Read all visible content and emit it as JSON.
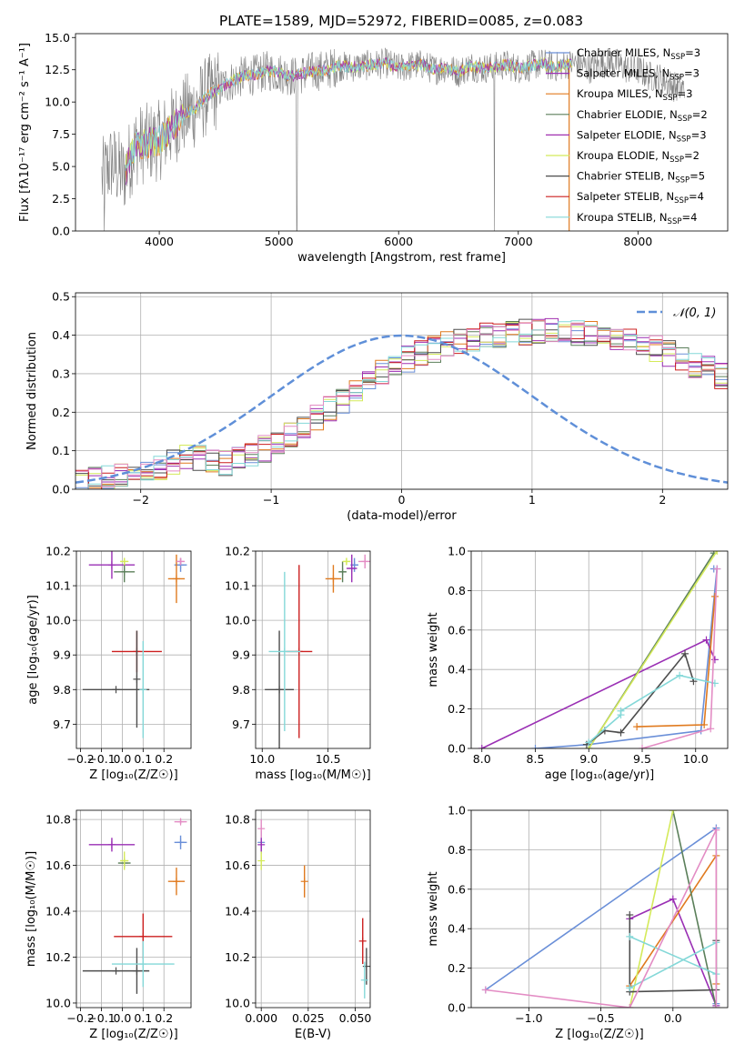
{
  "figure_title": "PLATE=1589, MJD=52972, FIBERID=0085, z=0.083",
  "colors": {
    "chabrier_miles": "#6a8fd8",
    "salpeter_miles": "#9a2fb4",
    "kroupa_miles": "#e07a1f",
    "chabrier_elodie": "#5b7f5a",
    "salpeter_elodie": "#a030b0",
    "kroupa_elodie": "#d4ea5a",
    "chabrier_stelib": "#4d4d4d",
    "salpeter_stelib": "#cc1f1f",
    "kroupa_stelib": "#84d8d8",
    "pink": "#e38cc4",
    "gray_data": "#808080",
    "normal_curve": "#5f8fd8"
  },
  "chart_data": [
    {
      "type": "line",
      "title": "PLATE=1589, MJD=52972, FIBERID=0085, z=0.083",
      "xlabel": "wavelength [Angstrom, rest frame]",
      "ylabel": "Flux [fλ10⁻¹⁷ erg cm⁻² s⁻¹ A⁻¹]",
      "xlim": [
        3300,
        8750
      ],
      "ylim": [
        0,
        15.3
      ],
      "xticks": [
        4000,
        5000,
        6000,
        7000,
        8000
      ],
      "yticks": [
        0.0,
        2.5,
        5.0,
        7.5,
        10.0,
        12.5,
        15.0
      ],
      "legend_position": "right",
      "legend": [
        {
          "label": "Chabrier MILES, N",
          "sub": "SSP",
          "suffix": "=3",
          "color_key": "chabrier_miles"
        },
        {
          "label": "Salpeter MILES, N",
          "sub": "SSP",
          "suffix": "=3",
          "color_key": "salpeter_miles"
        },
        {
          "label": "Kroupa MILES, N",
          "sub": "SSP",
          "suffix": "=3",
          "color_key": "kroupa_miles"
        },
        {
          "label": "Chabrier ELODIE, N",
          "sub": "SSP",
          "suffix": "=2",
          "color_key": "chabrier_elodie"
        },
        {
          "label": "Salpeter ELODIE, N",
          "sub": "SSP",
          "suffix": "=3",
          "color_key": "salpeter_elodie"
        },
        {
          "label": "Kroupa ELODIE, N",
          "sub": "SSP",
          "suffix": "=2",
          "color_key": "kroupa_elodie"
        },
        {
          "label": "Chabrier STELIB, N",
          "sub": "SSP",
          "suffix": "=5",
          "color_key": "chabrier_stelib"
        },
        {
          "label": "Salpeter STELIB, N",
          "sub": "SSP",
          "suffix": "=4",
          "color_key": "salpeter_stelib"
        },
        {
          "label": "Kroupa STELIB, N",
          "sub": "SSP",
          "suffix": "=4",
          "color_key": "kroupa_stelib"
        }
      ],
      "continuum": [
        [
          3520,
          4.0
        ],
        [
          3600,
          5.3
        ],
        [
          3700,
          4.3
        ],
        [
          3800,
          6.6
        ],
        [
          3900,
          6.8
        ],
        [
          4000,
          7.0
        ],
        [
          4100,
          8.0
        ],
        [
          4200,
          9.0
        ],
        [
          4300,
          9.5
        ],
        [
          4400,
          10.5
        ],
        [
          4500,
          11.0
        ],
        [
          4600,
          11.6
        ],
        [
          4700,
          12.0
        ],
        [
          4800,
          12.1
        ],
        [
          4900,
          12.4
        ],
        [
          5000,
          12.3
        ],
        [
          5100,
          12.0
        ],
        [
          5200,
          12.2
        ],
        [
          5300,
          12.4
        ],
        [
          5400,
          12.5
        ],
        [
          5500,
          12.8
        ],
        [
          5600,
          12.7
        ],
        [
          5700,
          12.8
        ],
        [
          5800,
          12.9
        ],
        [
          5900,
          13.0
        ],
        [
          6000,
          12.6
        ],
        [
          6100,
          12.8
        ],
        [
          6200,
          12.9
        ],
        [
          6300,
          12.5
        ],
        [
          6400,
          12.7
        ],
        [
          6500,
          12.3
        ],
        [
          6600,
          12.8
        ],
        [
          6700,
          12.6
        ],
        [
          6800,
          12.7
        ],
        [
          6900,
          12.9
        ],
        [
          7000,
          12.6
        ],
        [
          7100,
          12.8
        ],
        [
          7200,
          13.0
        ],
        [
          7300,
          12.7
        ],
        [
          7400,
          12.9
        ],
        [
          7500,
          13.0
        ],
        [
          7600,
          12.6
        ],
        [
          7700,
          13.0
        ],
        [
          7800,
          13.1
        ],
        [
          7900,
          12.6
        ],
        [
          8000,
          12.5
        ],
        [
          8100,
          12.0
        ],
        [
          8200,
          11.8
        ],
        [
          8300,
          11.2
        ],
        [
          8390,
          11.0
        ]
      ],
      "model_start": 3720,
      "model_end": 7450
    },
    {
      "type": "line",
      "xlabel": "(data-model)/error",
      "ylabel": "Normed distribution",
      "xlim": [
        -2.5,
        2.5
      ],
      "ylim": [
        0,
        0.51
      ],
      "xticks": [
        -2,
        -1,
        0,
        1,
        2
      ],
      "yticks": [
        0.0,
        0.1,
        0.2,
        0.3,
        0.4,
        0.5
      ],
      "bin_width": 0.1,
      "bin_start": -2.5,
      "histogram_profile": [
        0.02,
        0.022,
        0.028,
        0.035,
        0.042,
        0.05,
        0.058,
        0.07,
        0.08,
        0.082,
        0.075,
        0.07,
        0.076,
        0.09,
        0.105,
        0.122,
        0.142,
        0.162,
        0.184,
        0.207,
        0.226,
        0.252,
        0.276,
        0.3,
        0.32,
        0.338,
        0.352,
        0.364,
        0.376,
        0.387,
        0.392,
        0.398,
        0.402,
        0.405,
        0.408,
        0.41,
        0.412,
        0.41,
        0.408,
        0.404,
        0.398,
        0.392,
        0.384,
        0.375,
        0.365,
        0.352,
        0.338,
        0.324,
        0.31,
        0.294
      ],
      "legend": [
        {
          "label": "𝒩(0, 1)",
          "color_key": "normal_curve"
        }
      ],
      "legend_position": "top-right",
      "normal_mu": 0,
      "normal_sigma": 1
    },
    {
      "type": "scatter",
      "xlabel": "Z [log₁₀(Z/Z☉)]",
      "ylabel": "age  [log₁₀(age/yr)]",
      "xlim": [
        -0.22,
        0.33
      ],
      "ylim": [
        9.63,
        10.2
      ],
      "xticks": [
        -0.2,
        -0.1,
        0.0,
        0.1,
        0.2
      ],
      "yticks": [
        9.7,
        9.8,
        9.9,
        10.0,
        10.1,
        10.2
      ],
      "points": [
        {
          "x": 0.28,
          "y": 10.16,
          "xerr": 0.03,
          "yerr": 0.02,
          "color_key": "chabrier_miles"
        },
        {
          "x": -0.05,
          "y": 10.16,
          "xerr": 0.11,
          "yerr": 0.04,
          "color_key": "salpeter_miles"
        },
        {
          "x": 0.26,
          "y": 10.12,
          "xerr": 0.04,
          "yerr": 0.07,
          "color_key": "kroupa_miles"
        },
        {
          "x": 0.01,
          "y": 10.14,
          "xerr": 0.05,
          "yerr": 0.03,
          "color_key": "chabrier_elodie"
        },
        {
          "x": 0.28,
          "y": 10.17,
          "xerr": 0.02,
          "yerr": 0.01,
          "color_key": "pink"
        },
        {
          "x": 0.01,
          "y": 10.17,
          "xerr": 0.02,
          "yerr": 0.01,
          "color_key": "kroupa_elodie"
        },
        {
          "x": -0.03,
          "y": 9.8,
          "xerr": 0.16,
          "yerr": 0.0,
          "color_key": "chabrier_stelib"
        },
        {
          "x": 0.07,
          "y": 9.91,
          "xerr": 0.12,
          "yerr": 0.06,
          "color_key": "salpeter_stelib"
        },
        {
          "x": 0.07,
          "y": 9.83,
          "xerr": 0.0,
          "yerr": 0.14,
          "color_key": "chabrier_stelib"
        },
        {
          "x": 0.1,
          "y": 9.8,
          "xerr": 0.0,
          "yerr": 0.14,
          "color_key": "kroupa_stelib"
        }
      ]
    },
    {
      "type": "scatter",
      "xlabel": "mass [log₁₀(M/M☉)]",
      "ylabel": "",
      "xlim": [
        9.95,
        10.82
      ],
      "ylim": [
        9.63,
        10.2
      ],
      "xticks": [
        10.0,
        10.5
      ],
      "yticks": [
        9.7,
        9.8,
        9.9,
        10.0,
        10.1,
        10.2
      ],
      "points": [
        {
          "x": 10.7,
          "y": 10.16,
          "xerr": 0.03,
          "yerr": 0.02,
          "color_key": "chabrier_miles"
        },
        {
          "x": 10.68,
          "y": 10.15,
          "xerr": 0.04,
          "yerr": 0.04,
          "color_key": "salpeter_miles"
        },
        {
          "x": 10.54,
          "y": 10.12,
          "xerr": 0.06,
          "yerr": 0.04,
          "color_key": "kroupa_miles"
        },
        {
          "x": 10.61,
          "y": 10.14,
          "xerr": 0.03,
          "yerr": 0.03,
          "color_key": "chabrier_elodie"
        },
        {
          "x": 10.78,
          "y": 10.17,
          "xerr": 0.05,
          "yerr": 0.02,
          "color_key": "pink"
        },
        {
          "x": 10.64,
          "y": 10.17,
          "xerr": 0.03,
          "yerr": 0.01,
          "color_key": "kroupa_elodie"
        },
        {
          "x": 10.13,
          "y": 9.8,
          "xerr": 0.11,
          "yerr": 0.17,
          "color_key": "chabrier_stelib"
        },
        {
          "x": 10.28,
          "y": 9.91,
          "xerr": 0.1,
          "yerr": 0.25,
          "color_key": "salpeter_stelib"
        },
        {
          "x": 10.17,
          "y": 9.91,
          "xerr": 0.12,
          "yerr": 0.23,
          "color_key": "kroupa_stelib"
        }
      ]
    },
    {
      "type": "line",
      "xlabel": "age  [log₁₀(age/yr)]",
      "ylabel": "mass weight",
      "xlim": [
        7.9,
        10.3
      ],
      "ylim": [
        0,
        1.0
      ],
      "xticks": [
        8.0,
        8.5,
        9.0,
        9.5,
        10.0
      ],
      "yticks": [
        0.0,
        0.2,
        0.4,
        0.6,
        0.8,
        1.0
      ],
      "series": [
        {
          "color_key": "chabrier_miles",
          "x": [
            8.5,
            9.0,
            10.05,
            10.2,
            10.17
          ],
          "y": [
            0.0,
            0.02,
            0.09,
            0.91,
            0.91
          ]
        },
        {
          "color_key": "salpeter_miles",
          "x": [
            8.0,
            10.1,
            10.18
          ],
          "y": [
            0.0,
            0.55,
            0.45
          ]
        },
        {
          "color_key": "kroupa_miles",
          "x": [
            9.45,
            10.08,
            10.18
          ],
          "y": [
            0.11,
            0.12,
            0.77
          ]
        },
        {
          "color_key": "chabrier_elodie",
          "x": [
            9.0,
            10.17
          ],
          "y": [
            0.0,
            0.99
          ]
        },
        {
          "color_key": "kroupa_elodie",
          "x": [
            9.0,
            10.2
          ],
          "y": [
            0.0,
            1.0
          ]
        },
        {
          "color_key": "chabrier_stelib",
          "x": [
            8.98,
            9.15,
            9.3,
            9.9,
            9.98
          ],
          "y": [
            0.02,
            0.09,
            0.08,
            0.48,
            0.34
          ]
        },
        {
          "color_key": "kroupa_stelib",
          "x": [
            9.0,
            9.3,
            9.3,
            9.85,
            10.18
          ],
          "y": [
            0.03,
            0.17,
            0.19,
            0.37,
            0.33
          ]
        },
        {
          "color_key": "pink",
          "x": [
            9.5,
            10.14,
            10.2
          ],
          "y": [
            0.0,
            0.1,
            0.91
          ]
        }
      ]
    },
    {
      "type": "scatter",
      "xlabel": "Z [log₁₀(Z/Z☉)]",
      "ylabel": "mass [log₁₀(M/M☉)]",
      "xlim": [
        -0.22,
        0.33
      ],
      "ylim": [
        9.98,
        10.84
      ],
      "xticks": [
        -0.2,
        -0.1,
        0.0,
        0.1,
        0.2
      ],
      "yticks": [
        10.0,
        10.2,
        10.4,
        10.6,
        10.8
      ],
      "points": [
        {
          "x": 0.28,
          "y": 10.7,
          "xerr": 0.03,
          "yerr": 0.03,
          "color_key": "chabrier_miles"
        },
        {
          "x": -0.05,
          "y": 10.69,
          "xerr": 0.11,
          "yerr": 0.03,
          "color_key": "salpeter_miles"
        },
        {
          "x": 0.26,
          "y": 10.53,
          "xerr": 0.04,
          "yerr": 0.06,
          "color_key": "kroupa_miles"
        },
        {
          "x": 0.01,
          "y": 10.61,
          "xerr": 0.03,
          "yerr": 0.02,
          "color_key": "chabrier_elodie"
        },
        {
          "x": 0.28,
          "y": 10.79,
          "xerr": 0.03,
          "yerr": 0.01,
          "color_key": "pink"
        },
        {
          "x": 0.01,
          "y": 10.62,
          "xerr": 0.02,
          "yerr": 0.04,
          "color_key": "kroupa_elodie"
        },
        {
          "x": -0.03,
          "y": 10.14,
          "xerr": 0.16,
          "yerr": 0.0,
          "color_key": "chabrier_stelib"
        },
        {
          "x": 0.07,
          "y": 10.14,
          "xerr": 0.0,
          "yerr": 0.1,
          "color_key": "chabrier_stelib"
        },
        {
          "x": 0.1,
          "y": 10.29,
          "xerr": 0.14,
          "yerr": 0.1,
          "color_key": "salpeter_stelib"
        },
        {
          "x": 0.1,
          "y": 10.17,
          "xerr": 0.15,
          "yerr": 0.1,
          "color_key": "kroupa_stelib"
        }
      ]
    },
    {
      "type": "scatter",
      "xlabel": "E(B-V)",
      "ylabel": "",
      "xlim": [
        -0.003,
        0.058
      ],
      "ylim": [
        9.98,
        10.84
      ],
      "xticks": [
        0.0,
        0.025,
        0.05
      ],
      "yticks": [
        10.0,
        10.2,
        10.4,
        10.6,
        10.8
      ],
      "points": [
        {
          "x": 0.0,
          "y": 10.7,
          "xerr": 0.0,
          "yerr": 0.05,
          "color_key": "chabrier_miles"
        },
        {
          "x": 0.0,
          "y": 10.69,
          "xerr": 0.0,
          "yerr": 0.03,
          "color_key": "salpeter_miles"
        },
        {
          "x": 0.023,
          "y": 10.53,
          "xerr": 0.0,
          "yerr": 0.07,
          "color_key": "kroupa_miles"
        },
        {
          "x": 0.0,
          "y": 10.76,
          "xerr": 0.0,
          "yerr": 0.04,
          "color_key": "pink"
        },
        {
          "x": 0.0,
          "y": 10.62,
          "xerr": 0.0,
          "yerr": 0.04,
          "color_key": "kroupa_elodie"
        },
        {
          "x": 0.056,
          "y": 10.16,
          "xerr": 0.0,
          "yerr": 0.08,
          "color_key": "chabrier_stelib"
        },
        {
          "x": 0.054,
          "y": 10.27,
          "xerr": 0.0,
          "yerr": 0.1,
          "color_key": "salpeter_stelib"
        },
        {
          "x": 0.055,
          "y": 10.1,
          "xerr": 0.0,
          "yerr": 0.08,
          "color_key": "kroupa_stelib"
        }
      ]
    },
    {
      "type": "line",
      "xlabel": "Z [log₁₀(Z/Z☉)]",
      "ylabel": "mass weight",
      "xlim": [
        -1.4,
        0.38
      ],
      "ylim": [
        0,
        1.0
      ],
      "xticks": [
        -1.0,
        -0.5,
        0.0
      ],
      "yticks": [
        0.0,
        0.2,
        0.4,
        0.6,
        0.8,
        1.0
      ],
      "series": [
        {
          "color_key": "chabrier_miles",
          "x": [
            -1.3,
            0.3,
            0.3
          ],
          "y": [
            0.09,
            0.91,
            0.02
          ]
        },
        {
          "color_key": "salpeter_miles",
          "x": [
            -0.3,
            0.0,
            0.3
          ],
          "y": [
            0.45,
            0.55,
            0.01
          ]
        },
        {
          "color_key": "kroupa_miles",
          "x": [
            -0.3,
            0.3,
            0.3
          ],
          "y": [
            0.11,
            0.77,
            0.12
          ]
        },
        {
          "color_key": "chabrier_elodie",
          "x": [
            0.0,
            0.3
          ],
          "y": [
            1.0,
            0.0
          ]
        },
        {
          "color_key": "kroupa_elodie",
          "x": [
            -0.3,
            0.0
          ],
          "y": [
            0.0,
            1.0
          ]
        },
        {
          "color_key": "chabrier_stelib",
          "x": [
            -0.3,
            -0.3,
            0.3,
            0.3
          ],
          "y": [
            0.47,
            0.08,
            0.09,
            0.34
          ]
        },
        {
          "color_key": "kroupa_stelib",
          "x": [
            -0.3,
            0.3,
            0.3,
            -0.3
          ],
          "y": [
            0.36,
            0.17,
            0.33,
            0.1
          ]
        },
        {
          "color_key": "pink",
          "x": [
            -1.3,
            -0.3,
            0.3,
            0.3
          ],
          "y": [
            0.09,
            0.0,
            0.9,
            0.0
          ]
        }
      ]
    }
  ]
}
